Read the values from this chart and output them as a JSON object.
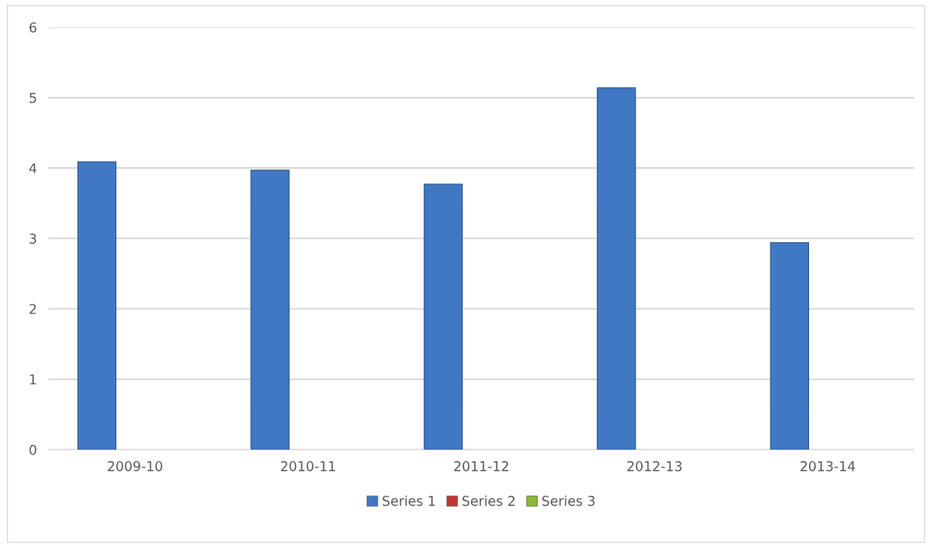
{
  "chart_data": {
    "type": "bar",
    "categories": [
      "2009-10",
      "2010-11",
      "2011-12",
      "2012-13",
      "2013-14"
    ],
    "series": [
      {
        "name": "Series 1",
        "color": "#4178c4",
        "values": [
          4.09,
          3.97,
          3.77,
          5.14,
          2.94
        ]
      },
      {
        "name": "Series 2",
        "color": "#c0392f",
        "values": [
          null,
          null,
          null,
          null,
          null
        ]
      },
      {
        "name": "Series 3",
        "color": "#8cb83a",
        "values": [
          null,
          null,
          null,
          null,
          null
        ]
      }
    ],
    "ylim": [
      0,
      6
    ],
    "yticks": [
      0,
      1,
      2,
      3,
      4,
      5,
      6
    ],
    "grid": "y",
    "legend": "bottom"
  }
}
